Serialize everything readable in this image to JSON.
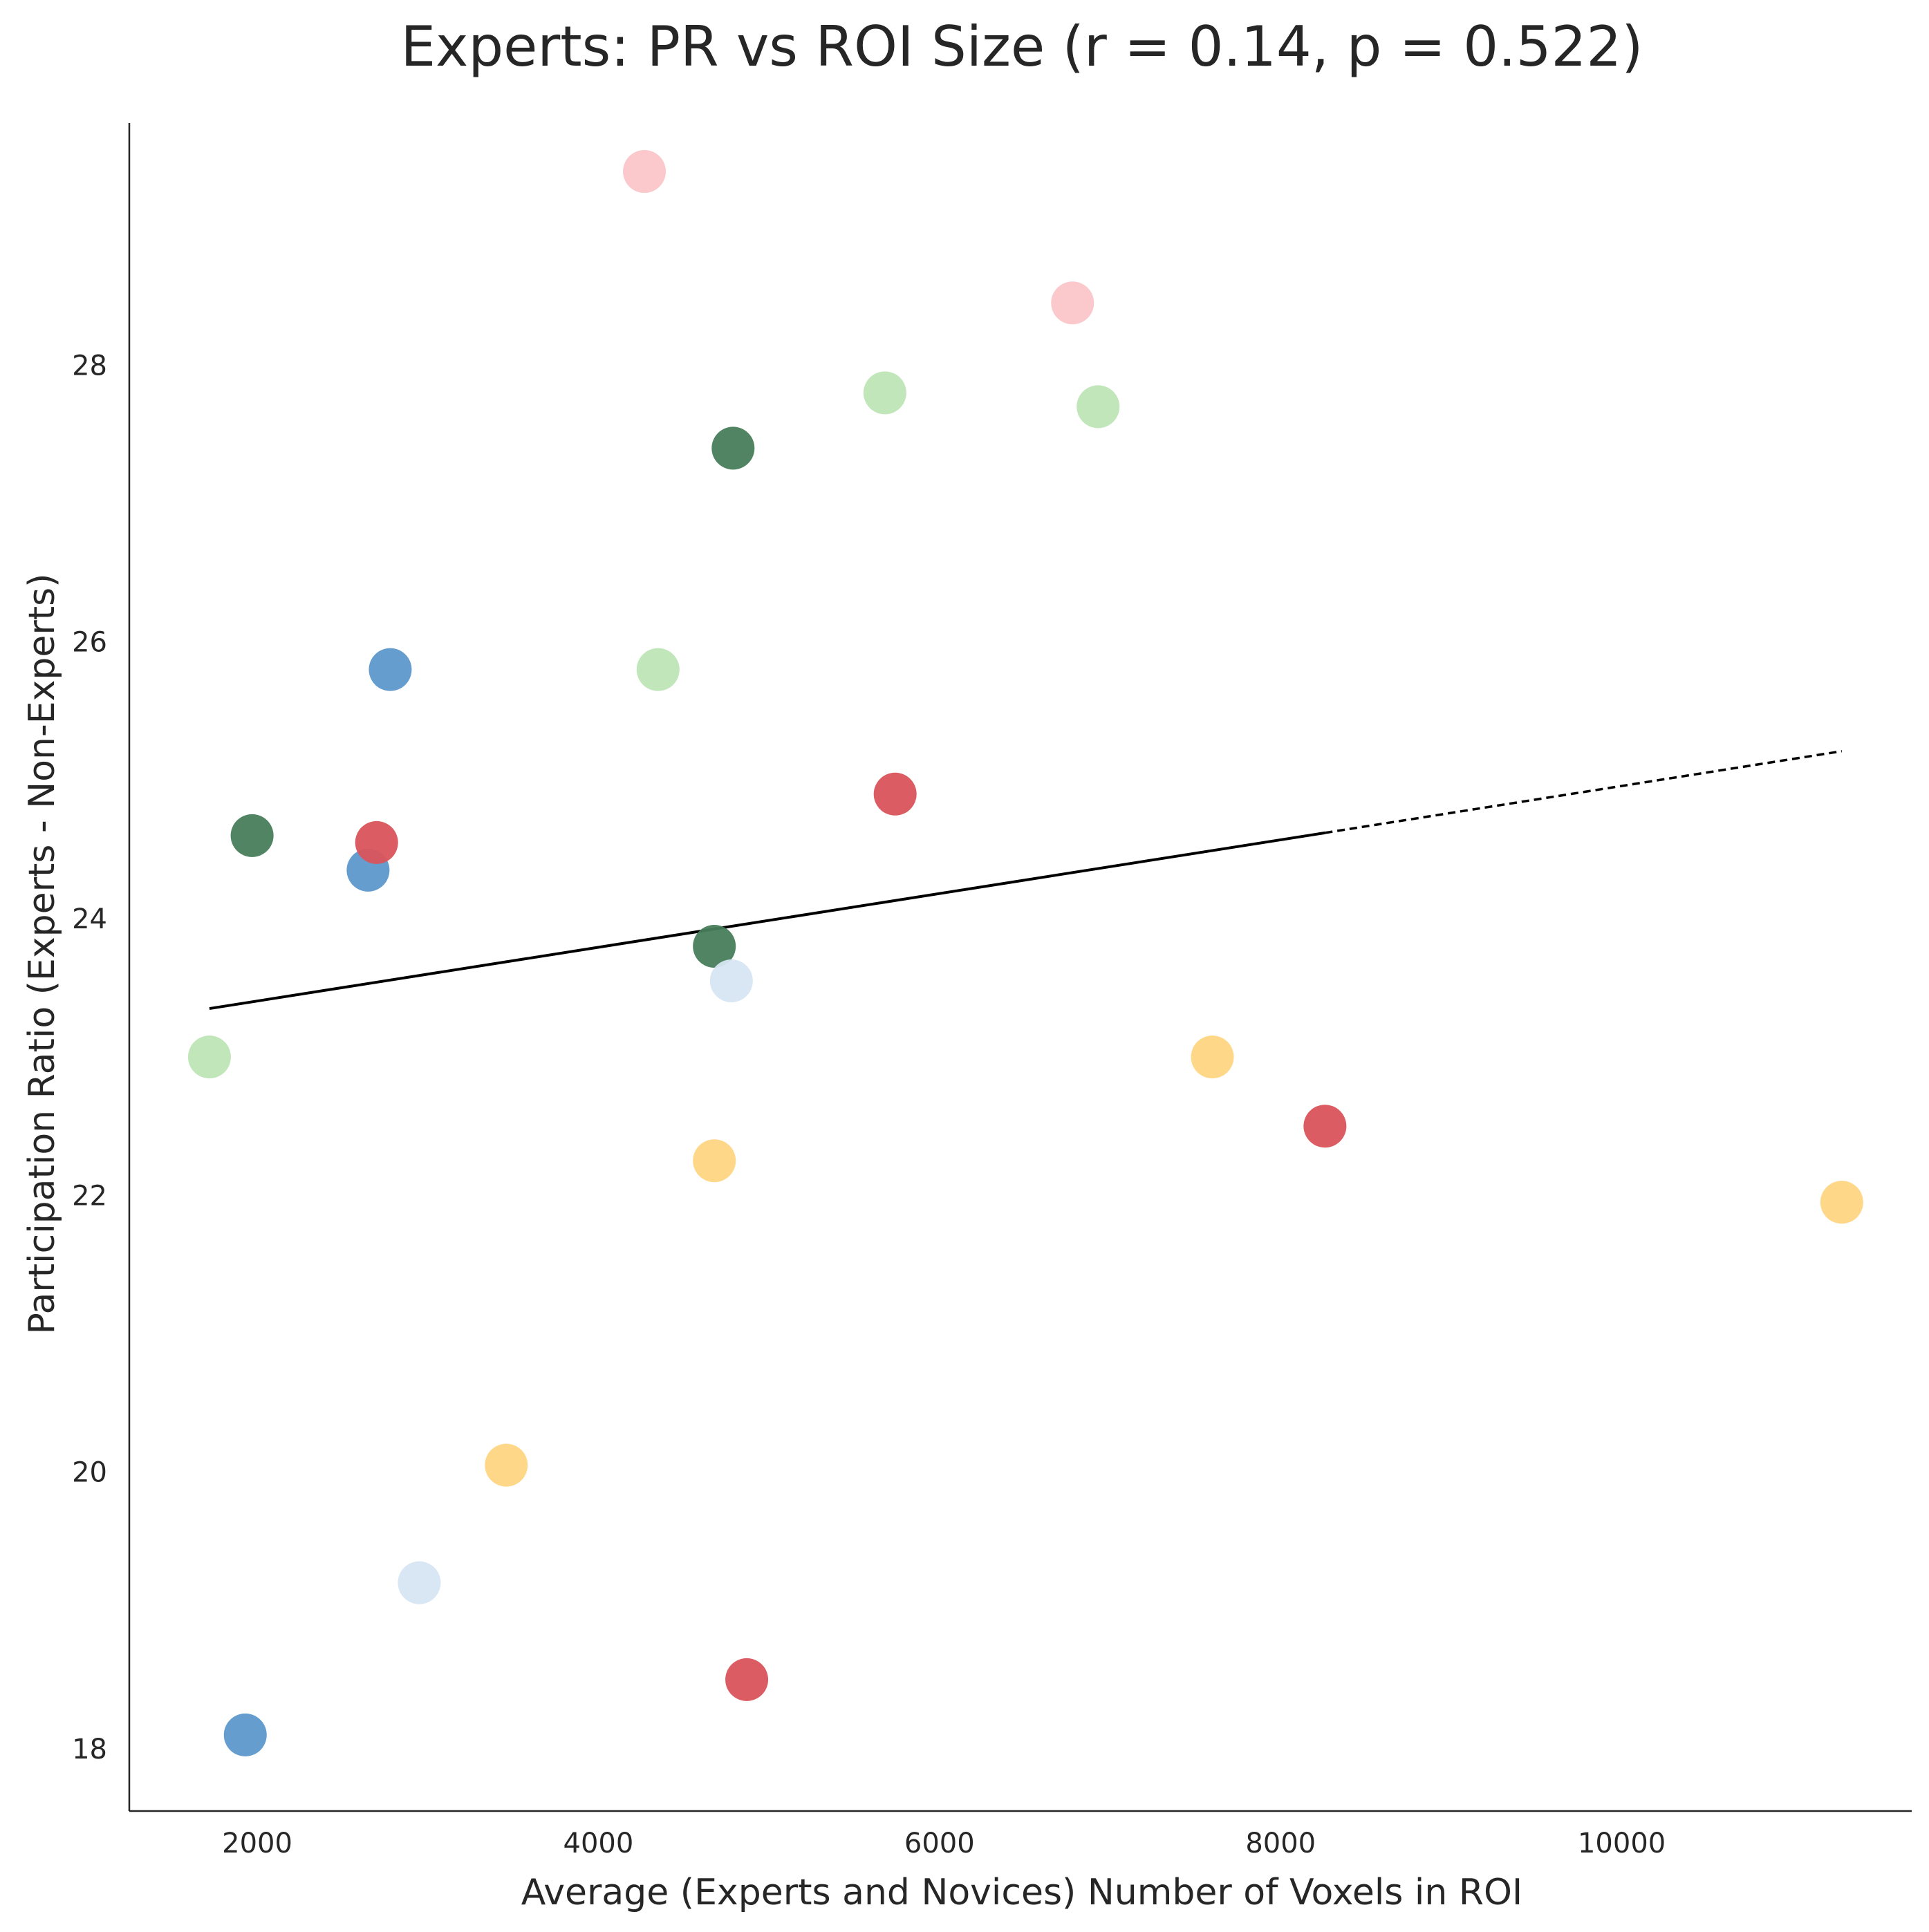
{
  "chart_data": {
    "type": "scatter",
    "title": "Experts: PR vs ROI Size (r = 0.14, p = 0.522)",
    "xlabel": "Average (Experts and Novices) Number of Voxels in ROI",
    "ylabel": "Participation Ratio (Experts - Non-Experts)",
    "xlim": [
      1250,
      11700
    ],
    "ylim": [
      17.55,
      29.75
    ],
    "xticks": [
      2000,
      4000,
      6000,
      8000,
      10000
    ],
    "xtick_labels": [
      "2000",
      "4000",
      "6000",
      "8000",
      "10000"
    ],
    "yticks": [
      18,
      20,
      22,
      24,
      26,
      28
    ],
    "ytick_labels": [
      "18",
      "20",
      "22",
      "24",
      "26",
      "28"
    ],
    "grid": false,
    "legend": "none",
    "points": [
      {
        "x": 4270,
        "y": 29.4,
        "color": "#fbc5c8"
      },
      {
        "x": 6780,
        "y": 28.45,
        "color": "#fbc5c8"
      },
      {
        "x": 5680,
        "y": 27.8,
        "color": "#bde5b6"
      },
      {
        "x": 6930,
        "y": 27.7,
        "color": "#bde5b6"
      },
      {
        "x": 4350,
        "y": 25.8,
        "color": "#bde5b6"
      },
      {
        "x": 1720,
        "y": 23.0,
        "color": "#bde5b6"
      },
      {
        "x": 4790,
        "y": 27.4,
        "color": "#477d5a"
      },
      {
        "x": 1970,
        "y": 24.6,
        "color": "#477d5a"
      },
      {
        "x": 4680,
        "y": 23.8,
        "color": "#477d5a"
      },
      {
        "x": 2780,
        "y": 25.8,
        "color": "#5d99cb"
      },
      {
        "x": 2650,
        "y": 24.35,
        "color": "#5d99cb"
      },
      {
        "x": 1930,
        "y": 18.1,
        "color": "#5d99cb"
      },
      {
        "x": 2700,
        "y": 24.55,
        "color": "#d9545b"
      },
      {
        "x": 5740,
        "y": 24.9,
        "color": "#d9545b"
      },
      {
        "x": 8260,
        "y": 22.5,
        "color": "#d9545b"
      },
      {
        "x": 4870,
        "y": 18.5,
        "color": "#d9545b"
      },
      {
        "x": 4780,
        "y": 23.55,
        "color": "#d7e6f3"
      },
      {
        "x": 2950,
        "y": 19.2,
        "color": "#d7e6f3"
      },
      {
        "x": 7600,
        "y": 23.0,
        "color": "#fed682"
      },
      {
        "x": 4680,
        "y": 22.25,
        "color": "#fed682"
      },
      {
        "x": 3460,
        "y": 20.05,
        "color": "#fed682"
      },
      {
        "x": 11290,
        "y": 21.95,
        "color": "#fed682"
      }
    ],
    "fit_line": {
      "solid": [
        {
          "x": 1720,
          "y": 23.35
        },
        {
          "x": 8260,
          "y": 24.62
        }
      ],
      "dashed": [
        {
          "x": 8260,
          "y": 24.62
        },
        {
          "x": 11290,
          "y": 25.21
        }
      ],
      "color": "#000000"
    }
  }
}
